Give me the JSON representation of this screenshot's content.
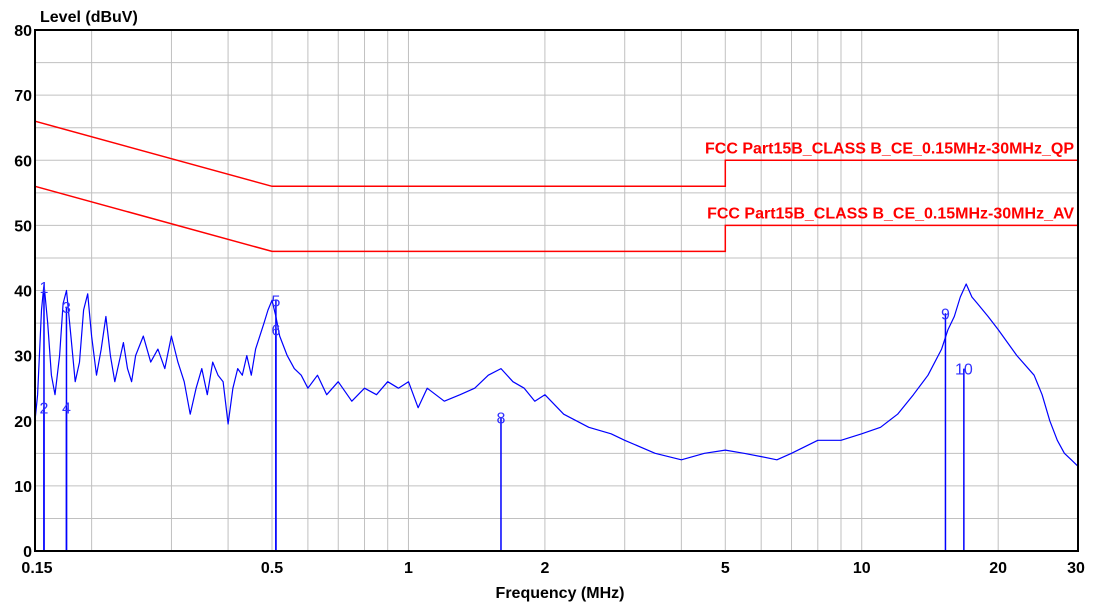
{
  "chart_data": {
    "type": "line",
    "ylabel": "Level (dBuV)",
    "xlabel": "Frequency (MHz)",
    "x_scale": "log",
    "xlim": [
      0.15,
      30
    ],
    "ylim": [
      0,
      80
    ],
    "grid": true,
    "x_ticks": [
      {
        "value": 0.15,
        "label": "0.15"
      },
      {
        "value": 0.5,
        "label": "0.5"
      },
      {
        "value": 1,
        "label": "1"
      },
      {
        "value": 2,
        "label": "2"
      },
      {
        "value": 5,
        "label": "5"
      },
      {
        "value": 10,
        "label": "10"
      },
      {
        "value": 20,
        "label": "20"
      },
      {
        "value": 30,
        "label": "30"
      }
    ],
    "y_ticks": [
      {
        "value": 0,
        "label": "0"
      },
      {
        "value": 10,
        "label": "10"
      },
      {
        "value": 20,
        "label": "20"
      },
      {
        "value": 30,
        "label": "30"
      },
      {
        "value": 40,
        "label": "40"
      },
      {
        "value": 50,
        "label": "50"
      },
      {
        "value": 60,
        "label": "60"
      },
      {
        "value": 70,
        "label": "70"
      },
      {
        "value": 80,
        "label": "80"
      }
    ],
    "limits": [
      {
        "name": "FCC Part15B_CLASS B_CE_0.15MHz-30MHz_QP",
        "color": "#ff0000",
        "points": [
          [
            0.15,
            66
          ],
          [
            0.5,
            56
          ],
          [
            5,
            56
          ],
          [
            5,
            60
          ],
          [
            30,
            60
          ]
        ]
      },
      {
        "name": "FCC Part15B_CLASS B_CE_0.15MHz-30MHz_AV",
        "color": "#ff0000",
        "points": [
          [
            0.15,
            56
          ],
          [
            0.5,
            46
          ],
          [
            5,
            46
          ],
          [
            5,
            50
          ],
          [
            30,
            50
          ]
        ]
      }
    ],
    "series": [
      {
        "color": "#0000ff",
        "points": [
          [
            0.15,
            20
          ],
          [
            0.152,
            24
          ],
          [
            0.155,
            37
          ],
          [
            0.157,
            41
          ],
          [
            0.16,
            35
          ],
          [
            0.163,
            27
          ],
          [
            0.166,
            24
          ],
          [
            0.17,
            30
          ],
          [
            0.173,
            38
          ],
          [
            0.176,
            40
          ],
          [
            0.18,
            33
          ],
          [
            0.184,
            26
          ],
          [
            0.188,
            29
          ],
          [
            0.192,
            37
          ],
          [
            0.196,
            39.5
          ],
          [
            0.2,
            33
          ],
          [
            0.205,
            27
          ],
          [
            0.21,
            31
          ],
          [
            0.215,
            36
          ],
          [
            0.22,
            30
          ],
          [
            0.225,
            26
          ],
          [
            0.23,
            29
          ],
          [
            0.235,
            32
          ],
          [
            0.24,
            28
          ],
          [
            0.245,
            26
          ],
          [
            0.25,
            30
          ],
          [
            0.26,
            33
          ],
          [
            0.27,
            29
          ],
          [
            0.28,
            31
          ],
          [
            0.29,
            28
          ],
          [
            0.3,
            33
          ],
          [
            0.31,
            29
          ],
          [
            0.32,
            26
          ],
          [
            0.33,
            21
          ],
          [
            0.34,
            25
          ],
          [
            0.35,
            28
          ],
          [
            0.36,
            24
          ],
          [
            0.37,
            29
          ],
          [
            0.38,
            27
          ],
          [
            0.39,
            26
          ],
          [
            0.4,
            19.5
          ],
          [
            0.41,
            25
          ],
          [
            0.42,
            28
          ],
          [
            0.43,
            27
          ],
          [
            0.44,
            30
          ],
          [
            0.45,
            27
          ],
          [
            0.46,
            31
          ],
          [
            0.47,
            33
          ],
          [
            0.48,
            35
          ],
          [
            0.49,
            37
          ],
          [
            0.5,
            38.5
          ],
          [
            0.51,
            36
          ],
          [
            0.52,
            33
          ],
          [
            0.54,
            30
          ],
          [
            0.56,
            28
          ],
          [
            0.58,
            27
          ],
          [
            0.6,
            25
          ],
          [
            0.63,
            27
          ],
          [
            0.66,
            24
          ],
          [
            0.7,
            26
          ],
          [
            0.75,
            23
          ],
          [
            0.8,
            25
          ],
          [
            0.85,
            24
          ],
          [
            0.9,
            26
          ],
          [
            0.95,
            25
          ],
          [
            1,
            26
          ],
          [
            1.05,
            22
          ],
          [
            1.1,
            25
          ],
          [
            1.2,
            23
          ],
          [
            1.3,
            24
          ],
          [
            1.4,
            25
          ],
          [
            1.5,
            27
          ],
          [
            1.6,
            28
          ],
          [
            1.7,
            26
          ],
          [
            1.8,
            25
          ],
          [
            1.9,
            23
          ],
          [
            2,
            24
          ],
          [
            2.2,
            21
          ],
          [
            2.5,
            19
          ],
          [
            2.8,
            18
          ],
          [
            3,
            17
          ],
          [
            3.5,
            15
          ],
          [
            4,
            14
          ],
          [
            4.5,
            15
          ],
          [
            5,
            15.5
          ],
          [
            5.5,
            15
          ],
          [
            6,
            14.5
          ],
          [
            6.5,
            14
          ],
          [
            7,
            15
          ],
          [
            8,
            17
          ],
          [
            9,
            17
          ],
          [
            10,
            18
          ],
          [
            11,
            19
          ],
          [
            12,
            21
          ],
          [
            13,
            24
          ],
          [
            14,
            27
          ],
          [
            15,
            31
          ],
          [
            15.5,
            34
          ],
          [
            16,
            36
          ],
          [
            16.5,
            39
          ],
          [
            17,
            41
          ],
          [
            17.5,
            39
          ],
          [
            18,
            38
          ],
          [
            19,
            36
          ],
          [
            20,
            34
          ],
          [
            22,
            30
          ],
          [
            24,
            27
          ],
          [
            25,
            24
          ],
          [
            26,
            20
          ],
          [
            27,
            17
          ],
          [
            28,
            15
          ],
          [
            29,
            14
          ],
          [
            30,
            13
          ]
        ]
      }
    ],
    "markers": [
      {
        "label": "1",
        "x": 0.157,
        "y": 40.5
      },
      {
        "label": "2",
        "x": 0.157,
        "y": 22
      },
      {
        "label": "3",
        "x": 0.176,
        "y": 37.5
      },
      {
        "label": "4",
        "x": 0.176,
        "y": 22
      },
      {
        "label": "5",
        "x": 0.51,
        "y": 38.5
      },
      {
        "label": "6",
        "x": 0.51,
        "y": 34
      },
      {
        "label": "8",
        "x": 1.6,
        "y": 20.5
      },
      {
        "label": "9",
        "x": 15.3,
        "y": 36.5
      },
      {
        "label": "10",
        "x": 16.8,
        "y": 28
      }
    ]
  }
}
